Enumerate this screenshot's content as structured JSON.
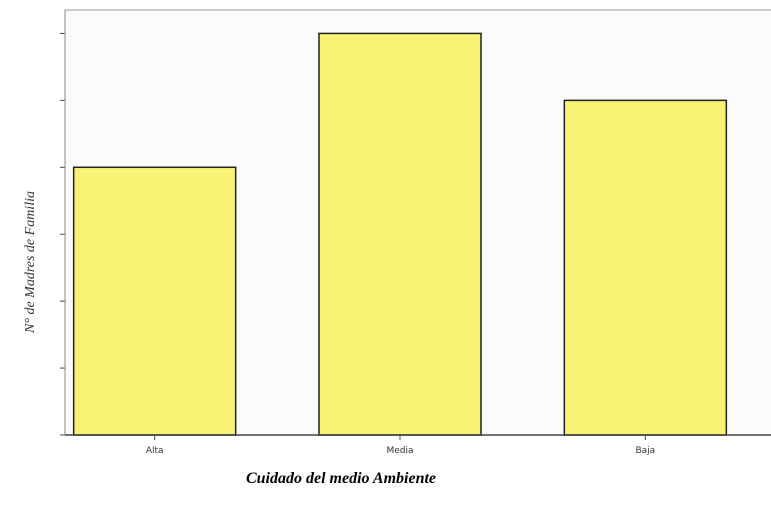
{
  "chart_data": {
    "type": "bar",
    "categories": [
      "Alta",
      "Media",
      "Baja"
    ],
    "values": [
      4,
      6,
      5
    ],
    "ylabel": "N° de Madres de Familia",
    "xlabel": "Cuidado del medio Ambiente",
    "ylim": [
      0,
      6.35
    ],
    "grid": false,
    "colors": {
      "bar_fill": "#f8f275",
      "bar_stroke": "#222222",
      "axis": "#444444",
      "plot_bg": "#fbfbfb"
    }
  }
}
